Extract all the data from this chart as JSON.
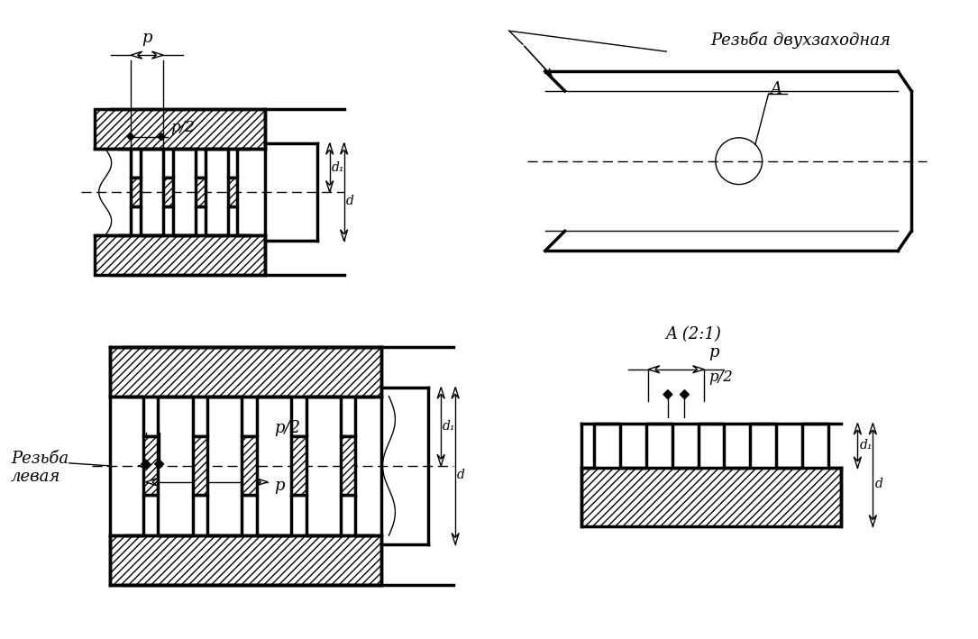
{
  "bg_color": "#ffffff",
  "lw_thick": 2.5,
  "lw_thin": 1.0,
  "labels": {
    "p": "p",
    "p2": "p/2",
    "rezba_dvuh": "Резьба двухзаходная",
    "A": "A",
    "A_21": "A (2:1)",
    "rezba_levaya1": "Резьба",
    "rezba_levaya2": "левая",
    "d1": "d₁",
    "d": "d"
  },
  "figsize": [
    10.85,
    7.09
  ],
  "dpi": 100
}
